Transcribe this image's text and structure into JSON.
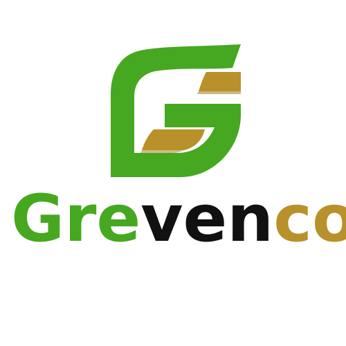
{
  "logo": {
    "wordmark": {
      "part_green": "Gre",
      "part_black": "ven",
      "part_gold": "co"
    },
    "colors": {
      "green": "#46a820",
      "green_dark": "#2f8d12",
      "black": "#111111",
      "gold": "#b8912a",
      "background": "#ffffff"
    },
    "icon": "leaf-g-icon"
  }
}
